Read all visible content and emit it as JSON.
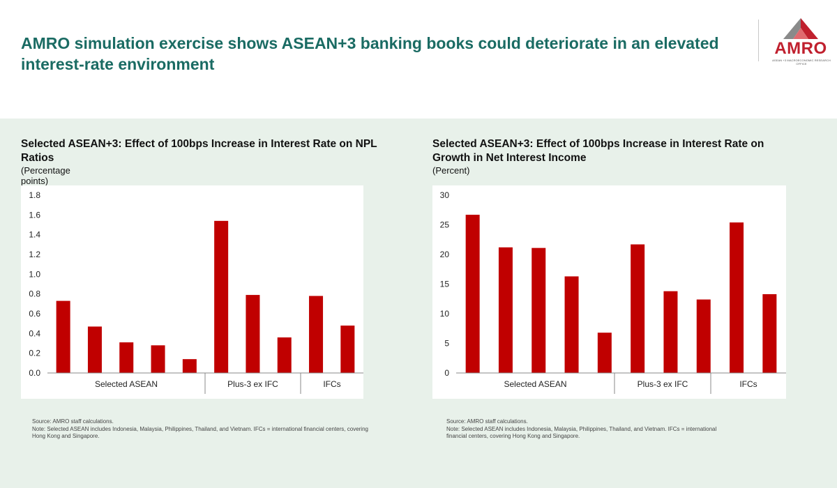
{
  "header": {
    "title": "AMRO simulation exercise shows ASEAN+3 banking books could deteriorate in an elevated interest-rate environment",
    "logo_text": "AMRO",
    "logo_subtext": "ASEAN +3 MACROECONOMIC RESEARCH OFFICE"
  },
  "colors": {
    "bar": "#c00000",
    "accent": "#1a6b63",
    "panel_bg": "#e8f1ea",
    "logo_red": "#c0202e"
  },
  "left_panel": {
    "title": "Selected ASEAN+3: Effect of 100bps Increase in Interest Rate on NPL Ratios",
    "unit": "(Percentage points)",
    "source": "Source: AMRO staff calculations.",
    "note": "Note: Selected ASEAN includes Indonesia, Malaysia, Philippines, Thailand, and Vietnam. IFCs = international financial centers, covering Hong Kong and Singapore."
  },
  "right_panel": {
    "title": "Selected ASEAN+3: Effect of 100bps Increase in Interest Rate on Growth in Net Interest Income",
    "unit": "(Percent)",
    "source": "Source: AMRO staff calculations.",
    "note": "Note: Selected ASEAN includes Indonesia, Malaysia, Philippines, Thailand, and Vietnam. IFCs = international financial centers, covering Hong Kong and Singapore."
  },
  "chart_data": [
    {
      "type": "bar",
      "title": "Selected ASEAN+3: Effect of 100bps Increase in Interest Rate on NPL Ratios",
      "ylabel": "(Percentage points)",
      "values": [
        0.73,
        0.47,
        0.31,
        0.28,
        0.14,
        1.54,
        0.79,
        0.36,
        0.78,
        0.48
      ],
      "groups": [
        {
          "label": "Selected ASEAN",
          "count": 5
        },
        {
          "label": "Plus-3 ex IFC",
          "count": 3
        },
        {
          "label": "IFCs",
          "count": 2
        }
      ],
      "ylim": [
        0,
        1.8
      ],
      "yticks": [
        "0.0",
        "0.2",
        "0.4",
        "0.6",
        "0.8",
        "1.0",
        "1.2",
        "1.4",
        "1.6",
        "1.8"
      ],
      "grid": false,
      "legend": "none"
    },
    {
      "type": "bar",
      "title": "Selected ASEAN+3: Effect of 100bps Increase in Interest Rate on Growth in Net Interest Income",
      "ylabel": "(Percent)",
      "values": [
        26.7,
        21.2,
        21.1,
        16.3,
        6.8,
        21.7,
        13.8,
        12.4,
        25.4,
        13.3
      ],
      "groups": [
        {
          "label": "Selected ASEAN",
          "count": 5
        },
        {
          "label": "Plus-3 ex IFC",
          "count": 3
        },
        {
          "label": "IFCs",
          "count": 2
        }
      ],
      "ylim": [
        0,
        30
      ],
      "yticks": [
        "0",
        "5",
        "10",
        "15",
        "20",
        "25",
        "30"
      ],
      "grid": false,
      "legend": "none"
    }
  ]
}
